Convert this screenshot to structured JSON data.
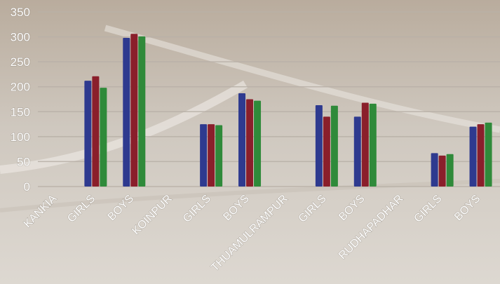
{
  "chart_data": {
    "type": "bar",
    "categories": [
      "KANKIA",
      "GIRLS",
      "BOYS",
      "KOINPUR",
      "GIRLS",
      "BOYS",
      "THUAMULRAMPUR",
      "GIRLS",
      "BOYS",
      "RUDHAPADHAR",
      "GIRLS",
      "BOYS"
    ],
    "series": [
      {
        "color": "#2e3a8f",
        "values": [
          null,
          212,
          298,
          null,
          125,
          187,
          null,
          163,
          140,
          null,
          67,
          120
        ]
      },
      {
        "color": "#8a1f2b",
        "values": [
          null,
          221,
          306,
          null,
          125,
          175,
          null,
          140,
          168,
          null,
          62,
          125
        ]
      },
      {
        "color": "#2f8a3a",
        "values": [
          null,
          198,
          301,
          null,
          123,
          172,
          null,
          162,
          166,
          null,
          65,
          128
        ]
      }
    ],
    "yticks": [
      0,
      50,
      100,
      150,
      200,
      250,
      300,
      350
    ],
    "ylim": [
      0,
      350
    ],
    "grid": true,
    "legend": "none",
    "title": "",
    "xlabel": "",
    "ylabel": ""
  },
  "colors": {
    "background": "#cfc7bd",
    "gridline": "#b9b1a8",
    "text": "#ffffff"
  }
}
